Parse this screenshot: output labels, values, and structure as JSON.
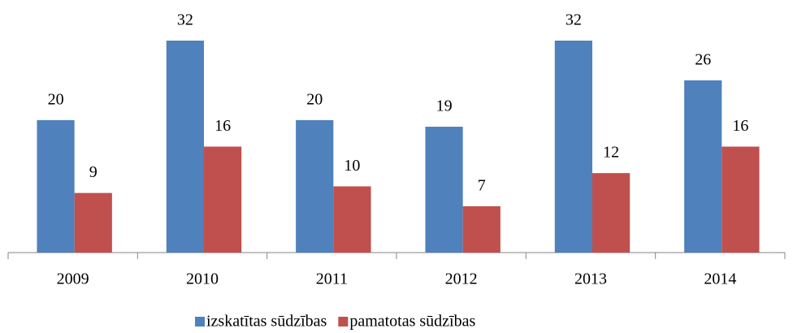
{
  "chart_data": {
    "type": "bar",
    "categories": [
      "2009",
      "2010",
      "2011",
      "2012",
      "2013",
      "2014"
    ],
    "series": [
      {
        "name": "izskatītas sūdzības",
        "color": "#4f81bd",
        "values": [
          20,
          32,
          20,
          19,
          32,
          26
        ]
      },
      {
        "name": "pamatotas sūdzības",
        "color": "#c0504d",
        "values": [
          9,
          16,
          10,
          7,
          12,
          16
        ]
      }
    ],
    "legend": "bottom"
  }
}
